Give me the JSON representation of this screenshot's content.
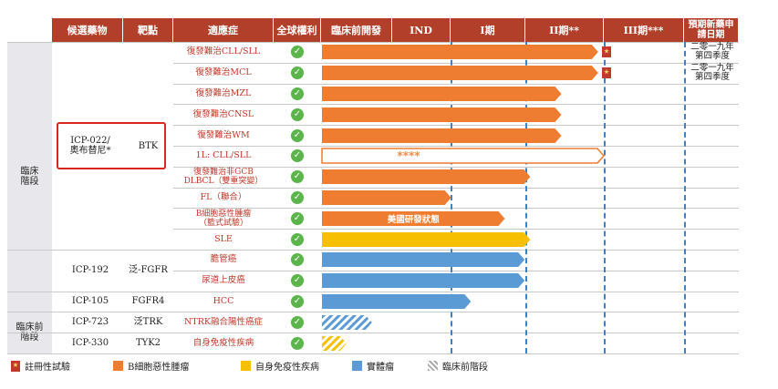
{
  "headers": [
    "候選藥物",
    "靶點",
    "適應症",
    "全球權利",
    "臨床前開發",
    "IND",
    "I期",
    "II期**",
    "III期***",
    "預期新藥申請日期"
  ],
  "phase_labels": {
    "clinical": "臨床\n階段",
    "preclinical": "臨床前\n階段"
  },
  "drugs": [
    {
      "name": "ICP-022/\n奧布替尼*",
      "target": "BTK"
    },
    {
      "name": "ICP-192",
      "target": "泛-FGFR"
    },
    {
      "name": "ICP-105",
      "target": "FGFR4"
    },
    {
      "name": "ICP-723",
      "target": "泛TRK"
    },
    {
      "name": "ICP-330",
      "target": "TYK2"
    }
  ],
  "rows": [
    {
      "indication": "復發難治CLL/SLL",
      "progress": 0.98,
      "type": "b-cell",
      "registration": true,
      "nda": "二零一九年\n第四季度"
    },
    {
      "indication": "復發難治MCL",
      "progress": 0.98,
      "type": "b-cell",
      "registration": true,
      "nda": "二零一九年\n第四季度"
    },
    {
      "indication": "復發難治MZL",
      "progress": 0.85,
      "type": "b-cell"
    },
    {
      "indication": "復發難治CNSL",
      "progress": 0.85,
      "type": "b-cell"
    },
    {
      "indication": "復發難治WM",
      "progress": 0.85,
      "type": "b-cell"
    },
    {
      "indication": "1L: CLL/SLL",
      "progress": 1.0,
      "type": "b-cell-outline",
      "bar_text": "****"
    },
    {
      "indication": "復發難治非GCB\nDLBCL（雙重突變）",
      "progress": 0.74,
      "type": "b-cell"
    },
    {
      "indication": "FL（聯合）",
      "progress": 0.46,
      "type": "b-cell"
    },
    {
      "indication": "B細胞惡性腫瘤\n（籃式試驗）",
      "progress": 0.65,
      "type": "b-cell",
      "bar_text": "美國研發狀態"
    },
    {
      "indication": "SLE",
      "progress": 0.74,
      "type": "autoimmune"
    },
    {
      "indication": "膽管癌",
      "progress": 0.72,
      "type": "solid"
    },
    {
      "indication": "尿道上皮癌",
      "progress": 0.72,
      "type": "solid"
    },
    {
      "indication": "HCC",
      "progress": 0.53,
      "type": "solid"
    },
    {
      "indication": "NTRK融合陽性癌症",
      "progress": 0.18,
      "type": "preclinical-solid"
    },
    {
      "indication": "自身免疫性疾病",
      "progress": 0.09,
      "type": "preclinical-auto"
    }
  ],
  "colors": {
    "header": "#b23f2a",
    "b_cell": "#ee7d31",
    "autoimmune": "#f6c000",
    "solid": "#5b9bd5",
    "check": "#5bb54a",
    "indication_text": "#c0392b"
  },
  "legend": [
    {
      "icon": "registration-icon",
      "label": "註冊性試驗"
    },
    {
      "icon": "orange-swatch",
      "label": "B細胞惡性腫瘤"
    },
    {
      "icon": "yellow-swatch",
      "label": "自身免疫性疾病"
    },
    {
      "icon": "blue-swatch",
      "label": "實體瘤"
    },
    {
      "icon": "hatched-swatch",
      "label": "臨床前階段"
    }
  ]
}
